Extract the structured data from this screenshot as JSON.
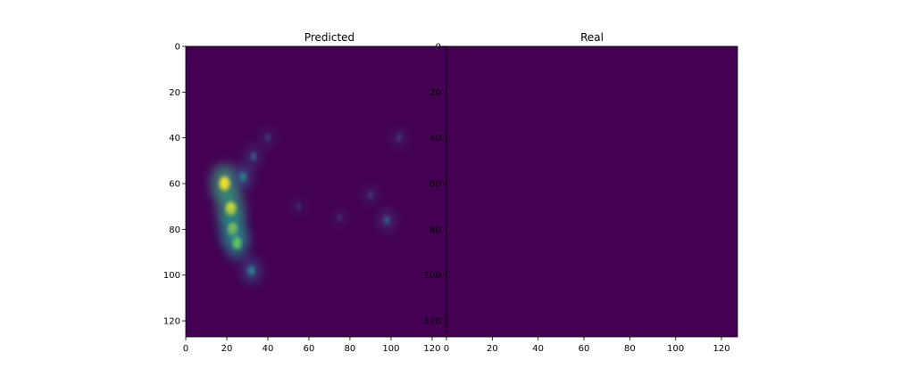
{
  "chart_data": [
    {
      "type": "heatmap",
      "title": "Predicted",
      "xlim": [
        0,
        127
      ],
      "ylim": [
        127,
        0
      ],
      "x_ticks": [
        0,
        20,
        40,
        60,
        80,
        100,
        120
      ],
      "y_ticks": [
        0,
        20,
        40,
        60,
        80,
        100,
        120
      ],
      "colormap": "viridis",
      "background_color": "#440154",
      "blobs": [
        {
          "x": 19,
          "y": 60,
          "intensity": 1.0
        },
        {
          "x": 22,
          "y": 71,
          "intensity": 0.95
        },
        {
          "x": 23,
          "y": 80,
          "intensity": 0.85
        },
        {
          "x": 25,
          "y": 86,
          "intensity": 0.75
        },
        {
          "x": 32,
          "y": 98,
          "intensity": 0.45
        },
        {
          "x": 28,
          "y": 57,
          "intensity": 0.45
        },
        {
          "x": 33,
          "y": 48,
          "intensity": 0.3
        },
        {
          "x": 40,
          "y": 40,
          "intensity": 0.2
        },
        {
          "x": 55,
          "y": 70,
          "intensity": 0.15
        },
        {
          "x": 75,
          "y": 75,
          "intensity": 0.15
        },
        {
          "x": 90,
          "y": 65,
          "intensity": 0.2
        },
        {
          "x": 98,
          "y": 76,
          "intensity": 0.3
        },
        {
          "x": 104,
          "y": 40,
          "intensity": 0.2
        }
      ]
    },
    {
      "type": "heatmap",
      "title": "Real",
      "xlim": [
        0,
        127
      ],
      "ylim": [
        127,
        0
      ],
      "x_ticks": [
        0,
        20,
        40,
        60,
        80,
        100,
        120
      ],
      "y_ticks": [
        0,
        20,
        40,
        60,
        80,
        100,
        120
      ],
      "colormap": "viridis",
      "background_color": "#440154",
      "blobs": []
    }
  ]
}
